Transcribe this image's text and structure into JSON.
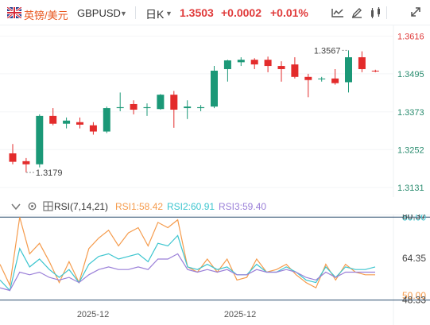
{
  "header": {
    "symbol_name": "英镑/美元",
    "symbol_code": "GBPUSD",
    "timeframe": "日K",
    "price": "1.3503",
    "change": "+0.0002",
    "change_pct": "+0.01%",
    "icons": [
      "line-chart-icon",
      "draw-icon",
      "compare-icon",
      "fullscreen-icon"
    ]
  },
  "indicator": {
    "name": "RSI(7,14,21)",
    "rsi1": "RSI1:58.42",
    "rsi2": "RSI2:60.91",
    "rsi3": "RSI3:59.40"
  },
  "colors": {
    "up": "#1b9877",
    "down": "#e32b2b",
    "rsi1": "#f59b4c",
    "rsi2": "#3cc5cf",
    "rsi3": "#9a7fd8",
    "ref_line": "#2b4d6e"
  },
  "chart_data": [
    {
      "type": "candlestick",
      "price_axis": {
        "ticks": [
          "1.3616",
          "1.3495",
          "1.3373",
          "1.3252",
          "1.3131"
        ],
        "range": [
          1.31,
          1.365
        ]
      },
      "x_tick_labels": [
        "2025-12",
        "2025-12"
      ],
      "annotations": {
        "high": "1.3567",
        "low": "1.3179"
      },
      "candles": [
        {
          "o": 1.324,
          "h": 1.327,
          "l": 1.3205,
          "c": 1.3213
        },
        {
          "o": 1.3215,
          "h": 1.3225,
          "l": 1.3179,
          "c": 1.3205
        },
        {
          "o": 1.3205,
          "h": 1.3365,
          "l": 1.3195,
          "c": 1.336
        },
        {
          "o": 1.336,
          "h": 1.3385,
          "l": 1.333,
          "c": 1.3335
        },
        {
          "o": 1.3335,
          "h": 1.3355,
          "l": 1.332,
          "c": 1.3345
        },
        {
          "o": 1.334,
          "h": 1.3355,
          "l": 1.332,
          "c": 1.3332
        },
        {
          "o": 1.333,
          "h": 1.334,
          "l": 1.33,
          "c": 1.331
        },
        {
          "o": 1.331,
          "h": 1.339,
          "l": 1.3305,
          "c": 1.3385
        },
        {
          "o": 1.3385,
          "h": 1.3435,
          "l": 1.3375,
          "c": 1.3388
        },
        {
          "o": 1.3398,
          "h": 1.341,
          "l": 1.3365,
          "c": 1.338
        },
        {
          "o": 1.3385,
          "h": 1.34,
          "l": 1.336,
          "c": 1.3388
        },
        {
          "o": 1.3382,
          "h": 1.343,
          "l": 1.338,
          "c": 1.3428
        },
        {
          "o": 1.3428,
          "h": 1.344,
          "l": 1.3322,
          "c": 1.338
        },
        {
          "o": 1.3385,
          "h": 1.341,
          "l": 1.335,
          "c": 1.339
        },
        {
          "o": 1.3385,
          "h": 1.3395,
          "l": 1.3375,
          "c": 1.3388
        },
        {
          "o": 1.339,
          "h": 1.352,
          "l": 1.3385,
          "c": 1.3505
        },
        {
          "o": 1.351,
          "h": 1.354,
          "l": 1.347,
          "c": 1.3538
        },
        {
          "o": 1.3532,
          "h": 1.3548,
          "l": 1.352,
          "c": 1.354
        },
        {
          "o": 1.354,
          "h": 1.3545,
          "l": 1.351,
          "c": 1.3525
        },
        {
          "o": 1.354,
          "h": 1.355,
          "l": 1.35,
          "c": 1.352
        },
        {
          "o": 1.352,
          "h": 1.3535,
          "l": 1.347,
          "c": 1.351
        },
        {
          "o": 1.3525,
          "h": 1.3548,
          "l": 1.348,
          "c": 1.3485
        },
        {
          "o": 1.3485,
          "h": 1.3495,
          "l": 1.342,
          "c": 1.3475
        },
        {
          "o": 1.348,
          "h": 1.3485,
          "l": 1.347,
          "c": 1.348
        },
        {
          "o": 1.348,
          "h": 1.351,
          "l": 1.346,
          "c": 1.3465
        },
        {
          "o": 1.3468,
          "h": 1.357,
          "l": 1.3435,
          "c": 1.3548
        },
        {
          "o": 1.3548,
          "h": 1.3567,
          "l": 1.35,
          "c": 1.351
        },
        {
          "o": 1.3505,
          "h": 1.3508,
          "l": 1.35,
          "c": 1.3503
        }
      ]
    },
    {
      "type": "line",
      "title": "RSI(7,14,21)",
      "axis_ticks": [
        "80.00",
        "80.37",
        "64.35",
        "50.00",
        "48.33"
      ],
      "reference_lines": [
        80,
        48.33
      ],
      "y_range": [
        47,
        81
      ],
      "series": [
        {
          "name": "RSI1",
          "values": [
            62,
            54,
            80,
            66,
            70,
            63,
            55,
            63,
            55,
            68,
            72,
            75,
            69,
            74,
            76,
            69,
            78,
            76,
            79,
            61,
            59,
            64,
            59,
            64,
            56,
            57,
            64,
            59,
            60,
            62,
            58,
            55,
            53,
            62,
            56,
            62,
            59,
            58,
            58
          ]
        },
        {
          "name": "RSI2",
          "values": [
            56,
            52,
            68,
            61,
            64,
            60,
            57,
            60,
            55,
            62,
            65,
            66,
            64,
            65,
            66,
            63,
            70,
            69,
            73,
            61,
            60,
            62,
            60,
            61,
            58,
            58,
            62,
            59,
            59,
            61,
            59,
            56,
            55,
            61,
            57,
            61,
            60,
            60,
            61
          ]
        },
        {
          "name": "RSI3",
          "values": [
            53,
            52,
            59,
            58,
            59,
            57,
            56,
            57,
            55,
            58,
            60,
            61,
            60,
            60,
            61,
            60,
            64,
            64,
            66,
            60,
            59,
            60,
            59,
            60,
            58,
            58,
            60,
            59,
            59,
            60,
            59,
            57,
            56,
            59,
            57,
            59,
            59,
            59,
            59
          ]
        }
      ]
    }
  ]
}
